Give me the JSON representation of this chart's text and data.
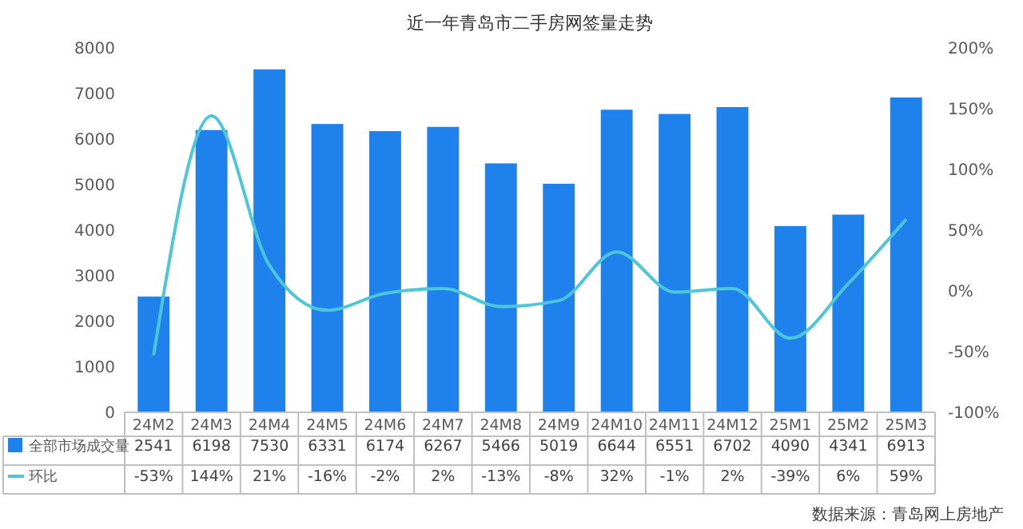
{
  "chart_data": {
    "type": "bar",
    "title": "近一年青岛市二手房网签量走势",
    "categories": [
      "24M2",
      "24M3",
      "24M4",
      "24M5",
      "24M6",
      "24M7",
      "24M8",
      "24M9",
      "24M10",
      "24M11",
      "24M12",
      "25M1",
      "25M2",
      "25M3"
    ],
    "series": [
      {
        "name": "全部市场成交量",
        "color": "#1f82ec",
        "values": [
          2541,
          6198,
          7530,
          6331,
          6174,
          6267,
          5466,
          5019,
          6644,
          6551,
          6702,
          4090,
          4341,
          6913
        ],
        "value_labels": [
          "2541",
          "6198",
          "7530",
          "6331",
          "6174",
          "6267",
          "5466",
          "5019",
          "6644",
          "6551",
          "6702",
          "4090",
          "4341",
          "6913"
        ]
      },
      {
        "name": "环比",
        "type": "line",
        "axis": "y2",
        "color": "#4cc6d8",
        "values": [
          -53,
          144,
          21,
          -16,
          -2,
          2,
          -13,
          -8,
          32,
          -1,
          2,
          -39,
          6,
          59
        ],
        "value_labels": [
          "-53%",
          "144%",
          "21%",
          "-16%",
          "-2%",
          "2%",
          "-13%",
          "-8%",
          "32%",
          "-1%",
          "2%",
          "-39%",
          "6%",
          "59%"
        ]
      }
    ],
    "ylim": [
      0,
      8000
    ],
    "yticks": [
      0,
      1000,
      2000,
      3000,
      4000,
      5000,
      6000,
      7000,
      8000
    ],
    "y2lim": [
      -100,
      200
    ],
    "y2ticks": [
      {
        "value": -100,
        "label": "-100%"
      },
      {
        "value": -50,
        "label": "-50%"
      },
      {
        "value": 0,
        "label": "0%"
      },
      {
        "value": 50,
        "label": "50%"
      },
      {
        "value": 100,
        "label": "100%"
      },
      {
        "value": 150,
        "label": "150%"
      },
      {
        "value": 200,
        "label": "200%"
      }
    ],
    "legend": "bottom",
    "grid": false,
    "annotations": [
      "数据来源：青岛网上房地产"
    ]
  }
}
